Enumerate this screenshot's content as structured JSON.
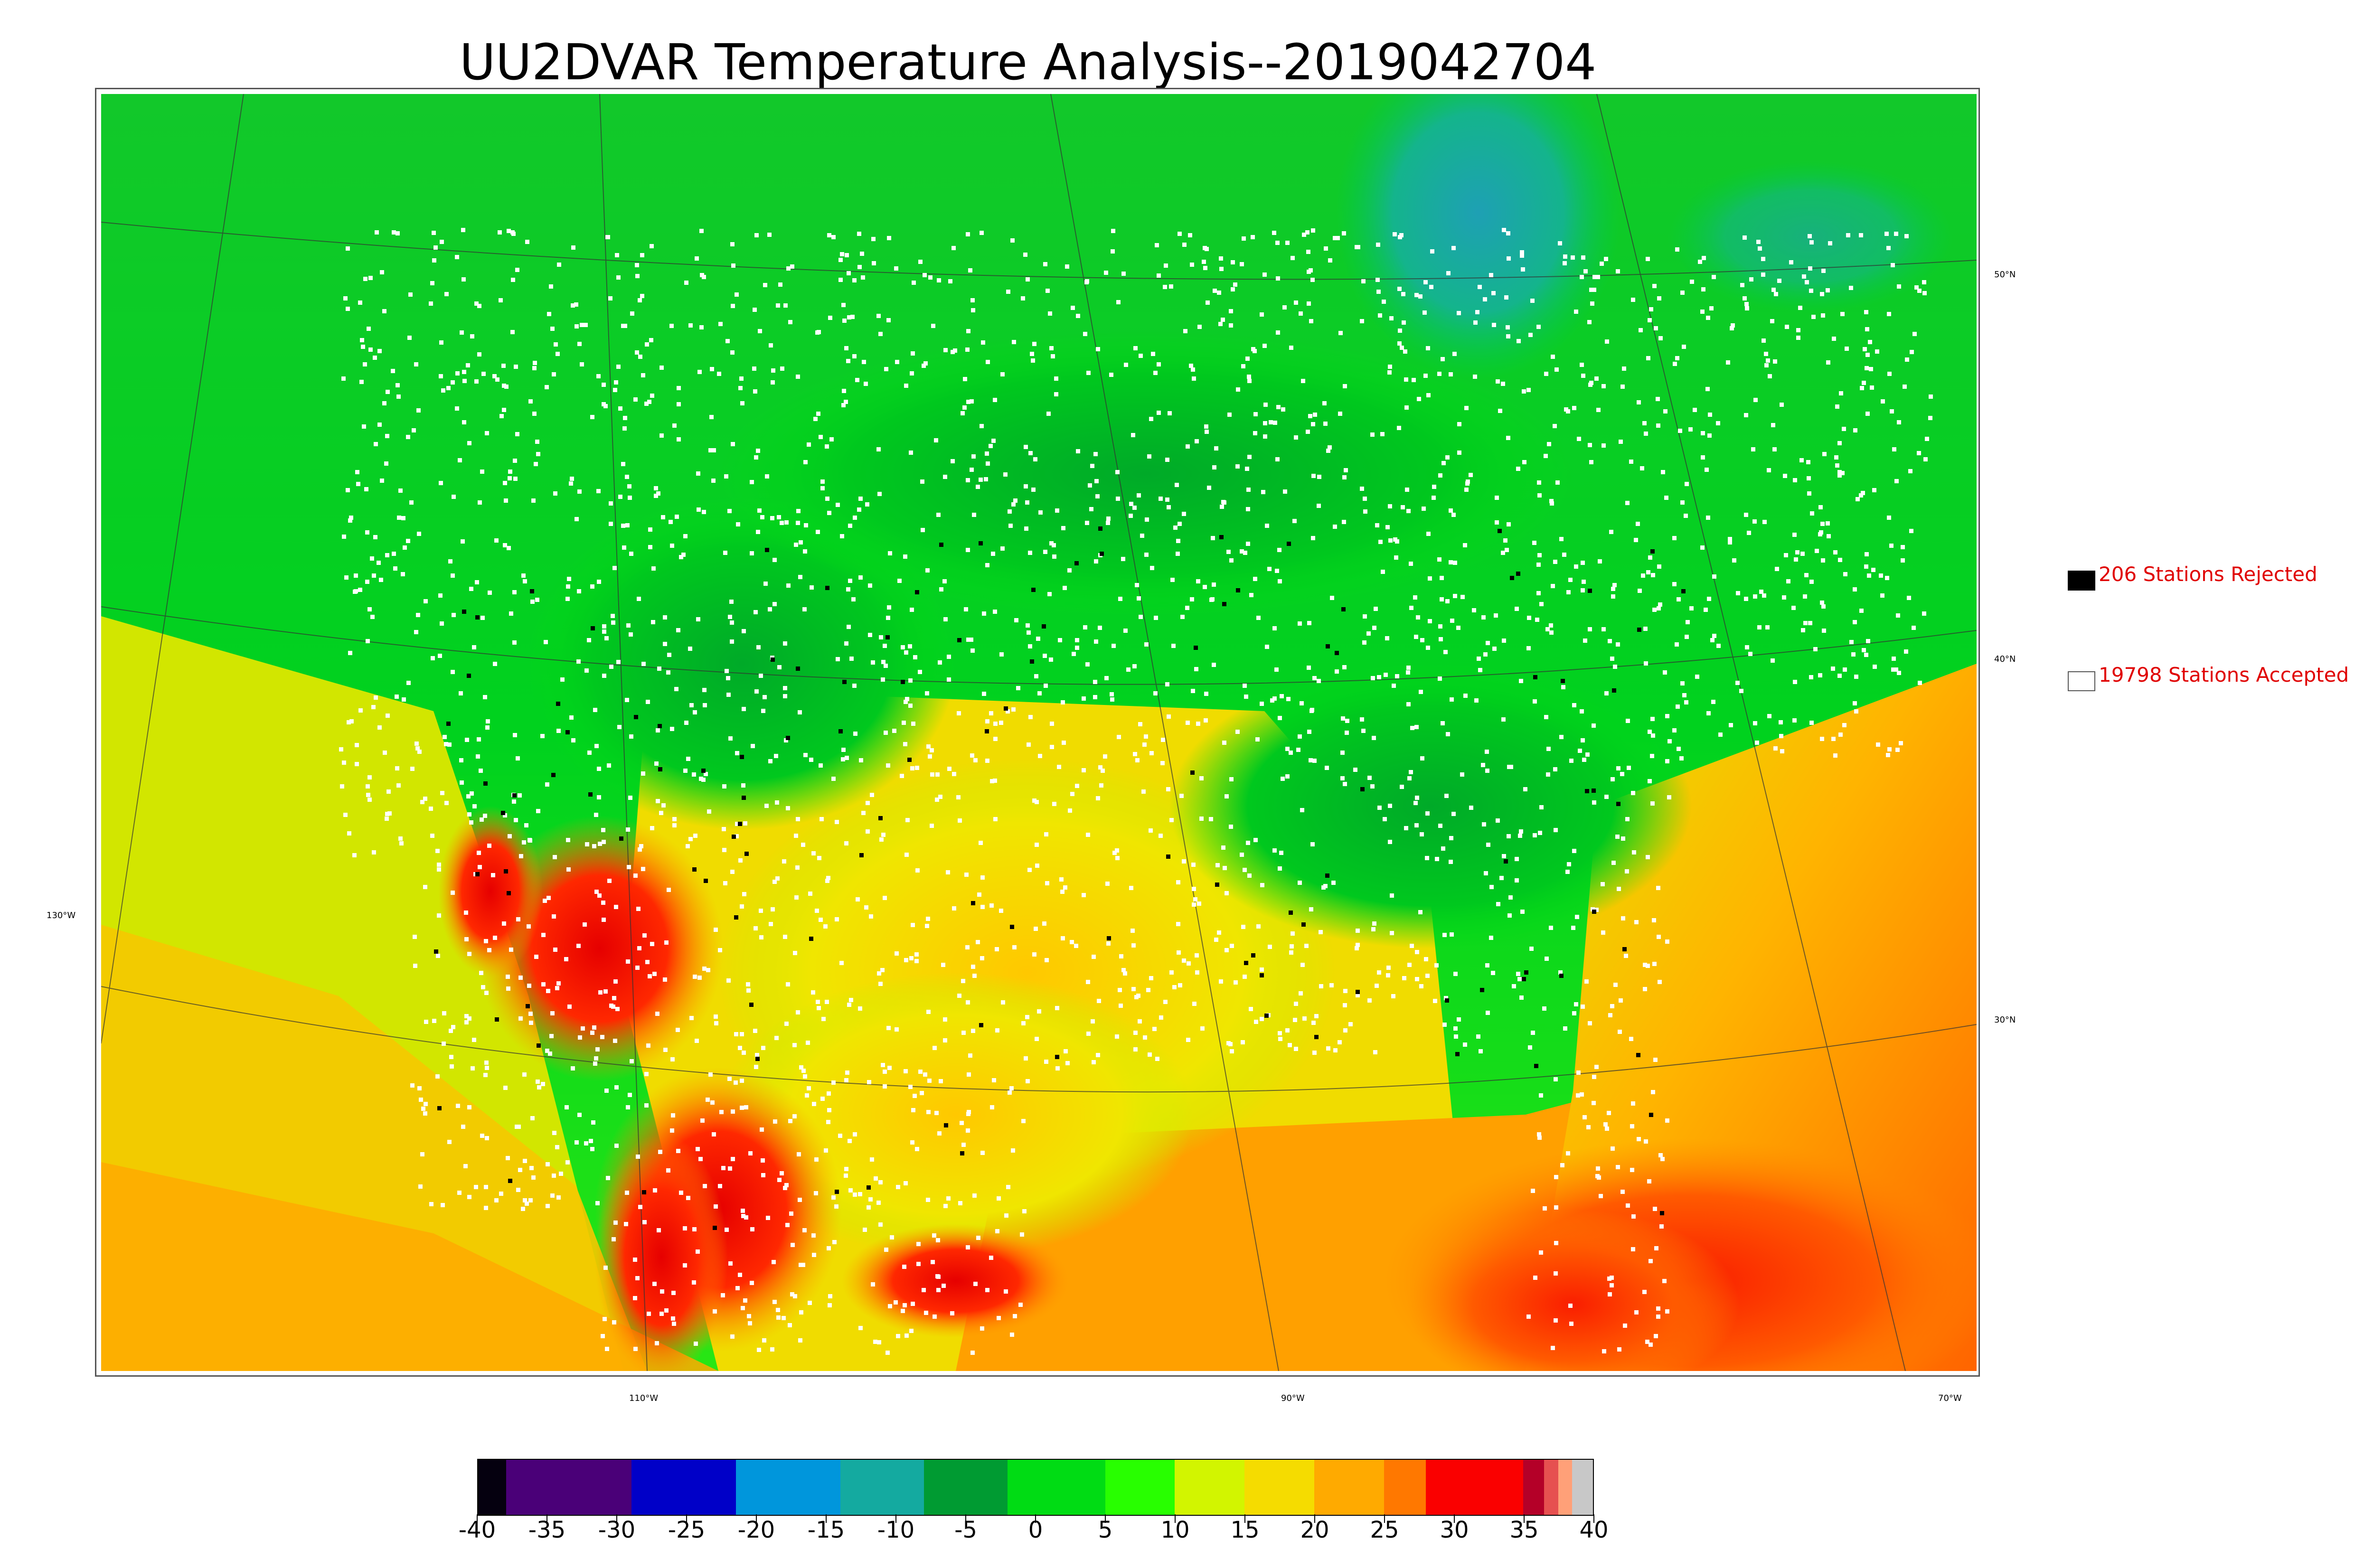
{
  "title": "UU2DVAR Temperature Analysis--2019042704",
  "graticule": {
    "lat_labels": [
      "50°N",
      "40°N",
      "30°N"
    ],
    "lon_labels_left": [
      "130°W"
    ],
    "lon_labels_bottom": [
      "110°W",
      "90°W",
      "70°W"
    ]
  },
  "legend": {
    "rejected": {
      "label": "206 Stations Rejected",
      "color": "#000000"
    },
    "accepted": {
      "label": "19798 Stations Accepted",
      "color": "#ffffff"
    }
  },
  "colorbar": {
    "ticks": [
      "-40",
      "-35",
      "-30",
      "-25",
      "-20",
      "-15",
      "-10",
      "-5",
      "0",
      "5",
      "10",
      "15",
      "20",
      "25",
      "30",
      "35",
      "40"
    ],
    "stops": [
      {
        "from": -40,
        "to": -38,
        "color": "#05000f"
      },
      {
        "from": -38,
        "to": -29,
        "color": "#4a0078"
      },
      {
        "from": -29,
        "to": -21.5,
        "color": "#0000c8"
      },
      {
        "from": -21.5,
        "to": -14,
        "color": "#0096dc"
      },
      {
        "from": -14,
        "to": -8,
        "color": "#14aaa0"
      },
      {
        "from": -8,
        "to": -2,
        "color": "#009b32"
      },
      {
        "from": -2,
        "to": 5,
        "color": "#00dc14"
      },
      {
        "from": 5,
        "to": 10,
        "color": "#28ff00"
      },
      {
        "from": 10,
        "to": 15,
        "color": "#d2f500"
      },
      {
        "from": 15,
        "to": 20,
        "color": "#f5dc00"
      },
      {
        "from": 20,
        "to": 25,
        "color": "#ffaa00"
      },
      {
        "from": 25,
        "to": 28,
        "color": "#ff7800"
      },
      {
        "from": 28,
        "to": 35,
        "color": "#fa0000"
      },
      {
        "from": 35,
        "to": 36.5,
        "color": "#b40028"
      },
      {
        "from": 36.5,
        "to": 37.5,
        "color": "#e65050"
      },
      {
        "from": 37.5,
        "to": 38.5,
        "color": "#ffa078"
      },
      {
        "from": 38.5,
        "to": 40,
        "color": "#c8c8c8"
      }
    ]
  }
}
